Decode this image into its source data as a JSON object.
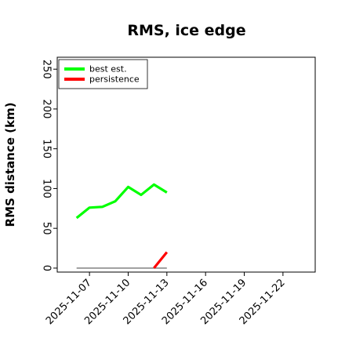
{
  "chart_data": {
    "type": "line",
    "title": "RMS, ice edge",
    "ylabel": "RMS distance (km)",
    "xlabel": "",
    "ylim": [
      -5,
      265
    ],
    "yticks": [
      0,
      50,
      100,
      150,
      200,
      250
    ],
    "xticks": [
      "2025-11-07",
      "2025-11-10",
      "2025-11-13",
      "2025-11-16",
      "2025-11-19",
      "2025-11-22"
    ],
    "xlim": [
      "2025-11-04T12:00",
      "2025-11-24T12:00"
    ],
    "grid": false,
    "legend": "top-left",
    "series": [
      {
        "name": "best est.",
        "color": "#00ff00",
        "x": [
          "2025-11-06",
          "2025-11-07",
          "2025-11-08",
          "2025-11-09",
          "2025-11-10",
          "2025-11-11",
          "2025-11-12",
          "2025-11-13"
        ],
        "values": [
          63,
          76,
          77,
          84,
          102,
          92,
          105,
          95
        ]
      },
      {
        "name": "persistence",
        "color": "#ff0000",
        "x": [
          "2025-11-12",
          "2025-11-13"
        ],
        "values": [
          0,
          20
        ]
      }
    ],
    "reference_line": {
      "color": "#777777",
      "x": [
        "2025-11-06",
        "2025-11-13"
      ],
      "values": [
        0,
        0
      ]
    }
  }
}
